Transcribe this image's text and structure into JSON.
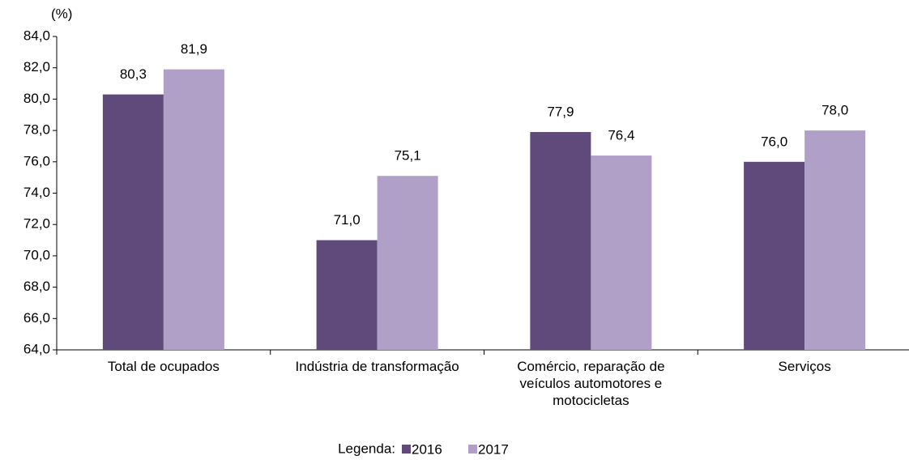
{
  "chart_data": {
    "type": "bar",
    "y_label": "(%)",
    "categories": [
      "Total de ocupados",
      "Indústria de transformação",
      "Comércio, reparação de veículos automotores e motocicletas",
      "Serviços"
    ],
    "series": [
      {
        "name": "2016",
        "color": "#5f4a7b",
        "values": [
          80.3,
          71.0,
          77.9,
          76.0
        ],
        "value_labels": [
          "80,3",
          "71,0",
          "77,9",
          "76,0"
        ]
      },
      {
        "name": "2017",
        "color": "#b0a0c8",
        "values": [
          81.9,
          75.1,
          76.4,
          78.0
        ],
        "value_labels": [
          "81,9",
          "75,1",
          "76,4",
          "78,0"
        ]
      }
    ],
    "ylim": [
      64,
      84
    ],
    "yticks": [
      {
        "value": 64,
        "label": "64,0"
      },
      {
        "value": 66,
        "label": "66,0"
      },
      {
        "value": 68,
        "label": "68,0"
      },
      {
        "value": 70,
        "label": "70,0"
      },
      {
        "value": 72,
        "label": "72,0"
      },
      {
        "value": 74,
        "label": "74,0"
      },
      {
        "value": 76,
        "label": "76,0"
      },
      {
        "value": 78,
        "label": "78,0"
      },
      {
        "value": 80,
        "label": "80,0"
      },
      {
        "value": 82,
        "label": "82,0"
      },
      {
        "value": 84,
        "label": "84,0"
      }
    ],
    "grid": false,
    "legend_title": "Legenda:"
  }
}
